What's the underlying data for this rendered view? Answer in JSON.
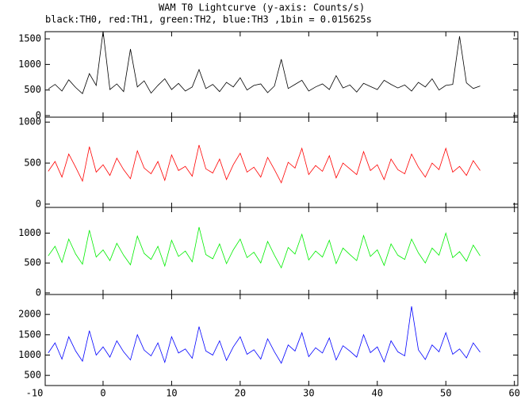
{
  "chart_data": {
    "type": "line",
    "title": "WAM T0 Lightcurve (y-axis: Counts/s)",
    "subtitle": "black:TH0, red:TH1, green:TH2, blue:TH3 ,1bin = 0.015625s",
    "x": [
      -8,
      -7,
      -6,
      -5,
      -4,
      -3,
      -2,
      -1,
      0,
      1,
      2,
      3,
      4,
      5,
      6,
      7,
      8,
      9,
      10,
      11,
      12,
      13,
      14,
      15,
      16,
      17,
      18,
      19,
      20,
      21,
      22,
      23,
      24,
      25,
      26,
      27,
      28,
      29,
      30,
      31,
      32,
      33,
      34,
      35,
      36,
      37,
      38,
      39,
      40,
      41,
      42,
      43,
      44,
      45,
      46,
      47,
      48,
      49,
      50,
      51,
      52,
      53,
      54,
      55
    ],
    "xlim": [
      -8.44,
      60.5
    ],
    "xticks": [
      -10,
      0,
      10,
      20,
      30,
      40,
      50,
      60
    ],
    "series": [
      {
        "color": "#000000",
        "ylim": [
          -30,
          1640
        ],
        "yticks": [
          0,
          500,
          1000,
          1500
        ],
        "values": [
          520,
          610,
          480,
          700,
          550,
          430,
          820,
          590,
          1650,
          510,
          620,
          470,
          1300,
          560,
          680,
          440,
          590,
          720,
          510,
          630,
          480,
          560,
          900,
          530,
          610,
          470,
          650,
          560,
          740,
          500,
          590,
          620,
          450,
          580,
          1100,
          530,
          610,
          690,
          480,
          560,
          620,
          510,
          780,
          540,
          600,
          460,
          630,
          570,
          510,
          690,
          610,
          540,
          600,
          480,
          650,
          560,
          720,
          500,
          590,
          610,
          1550,
          640,
          530,
          580
        ]
      },
      {
        "color": "#ff0000",
        "ylim": [
          -40,
          1060
        ],
        "yticks": [
          0,
          500,
          1000
        ],
        "values": [
          400,
          520,
          330,
          610,
          450,
          280,
          700,
          390,
          480,
          350,
          560,
          420,
          310,
          650,
          440,
          370,
          520,
          290,
          600,
          410,
          460,
          340,
          720,
          430,
          380,
          550,
          300,
          480,
          620,
          390,
          450,
          330,
          570,
          420,
          260,
          510,
          440,
          680,
          360,
          470,
          400,
          590,
          320,
          500,
          430,
          360,
          640,
          410,
          480,
          300,
          550,
          420,
          370,
          610,
          450,
          330,
          500,
          420,
          680,
          390,
          460,
          350,
          530,
          410
        ]
      },
      {
        "color": "#00ee00",
        "ylim": [
          -27,
          1430
        ],
        "yticks": [
          0,
          500,
          1000
        ],
        "values": [
          620,
          780,
          510,
          900,
          650,
          480,
          1050,
          600,
          720,
          540,
          830,
          630,
          470,
          950,
          660,
          560,
          780,
          450,
          880,
          610,
          700,
          520,
          1100,
          640,
          570,
          820,
          490,
          720,
          900,
          590,
          680,
          500,
          860,
          630,
          420,
          760,
          650,
          980,
          550,
          700,
          600,
          880,
          490,
          750,
          640,
          540,
          960,
          610,
          720,
          460,
          820,
          630,
          560,
          900,
          670,
          500,
          750,
          630,
          1000,
          590,
          690,
          530,
          800,
          620
        ]
      },
      {
        "color": "#0000ff",
        "ylim": [
          250,
          2490
        ],
        "yticks": [
          500,
          1000,
          1500,
          2000
        ],
        "values": [
          1050,
          1300,
          900,
          1450,
          1100,
          850,
          1600,
          1000,
          1200,
          950,
          1350,
          1080,
          880,
          1500,
          1120,
          980,
          1300,
          820,
          1450,
          1050,
          1150,
          920,
          1700,
          1100,
          1000,
          1350,
          870,
          1200,
          1450,
          1020,
          1130,
          900,
          1400,
          1080,
          800,
          1250,
          1100,
          1550,
          960,
          1180,
          1050,
          1420,
          880,
          1230,
          1100,
          950,
          1500,
          1060,
          1200,
          830,
          1350,
          1080,
          980,
          2200,
          1130,
          890,
          1250,
          1080,
          1550,
          1020,
          1150,
          930,
          1300,
          1070
        ]
      }
    ]
  }
}
